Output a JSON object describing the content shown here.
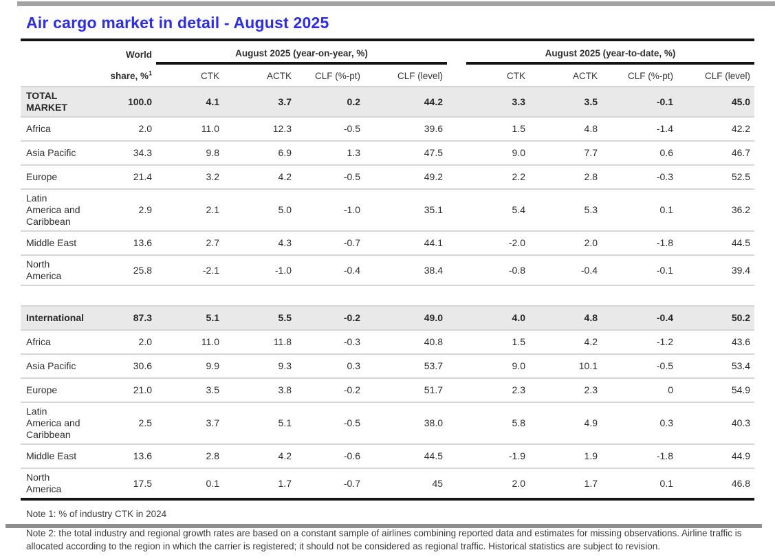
{
  "page": {
    "title": "Air cargo market in detail - August 2025",
    "accent_color": "#2b2bf2",
    "emphasis_row_bg": "#e9e9e9",
    "separator_color": "#d6d6d6",
    "rule_color": "#141414"
  },
  "table": {
    "header": {
      "world_line1": "World",
      "world_line2": "share, %",
      "world_sup": "1",
      "group_yoy": "August 2025 (year-on-year, %)",
      "group_ytd": "August 2025 (year-to-date, %)",
      "cols": [
        "CTK",
        "ACTK",
        "CLF (%-pt)",
        "CLF (level)",
        "CTK",
        "ACTK",
        "CLF (%-pt)",
        "CLF (level)"
      ]
    },
    "rows": [
      {
        "label": "TOTAL MARKET",
        "label_lines": [
          "TOTAL",
          "MARKET"
        ],
        "bold": true,
        "values": [
          "100.0",
          "4.1",
          "3.7",
          "0.2",
          "44.2",
          "3.3",
          "3.5",
          "-0.1",
          "45.0"
        ]
      },
      {
        "label": "Africa",
        "values": [
          "2.0",
          "11.0",
          "12.3",
          "-0.5",
          "39.6",
          "1.5",
          "4.8",
          "-1.4",
          "42.2"
        ]
      },
      {
        "label": "Asia Pacific",
        "values": [
          "34.3",
          "9.8",
          "6.9",
          "1.3",
          "47.5",
          "9.0",
          "7.7",
          "0.6",
          "46.7"
        ]
      },
      {
        "label": "Europe",
        "values": [
          "21.4",
          "3.2",
          "4.2",
          "-0.5",
          "49.2",
          "2.2",
          "2.8",
          "-0.3",
          "52.5"
        ]
      },
      {
        "label": "Latin America and Caribbean",
        "label_lines": [
          "Latin",
          "America and",
          "Caribbean"
        ],
        "values": [
          "2.9",
          "2.1",
          "5.0",
          "-1.0",
          "35.1",
          "5.4",
          "5.3",
          "0.1",
          "36.2"
        ]
      },
      {
        "label": "Middle East",
        "values": [
          "13.6",
          "2.7",
          "4.3",
          "-0.7",
          "44.1",
          "-2.0",
          "2.0",
          "-1.8",
          "44.5"
        ]
      },
      {
        "label": "North America",
        "label_lines": [
          "North",
          "America"
        ],
        "values": [
          "25.8",
          "-2.1",
          "-1.0",
          "-0.4",
          "38.4",
          "-0.8",
          "-0.4",
          "-0.1",
          "39.4"
        ]
      },
      {
        "spacer": true
      },
      {
        "label": "International",
        "bold": true,
        "values": [
          "87.3",
          "5.1",
          "5.5",
          "-0.2",
          "49.0",
          "4.0",
          "4.8",
          "-0.4",
          "50.2"
        ]
      },
      {
        "label": "Africa",
        "values": [
          "2.0",
          "11.0",
          "11.8",
          "-0.3",
          "40.8",
          "1.5",
          "4.2",
          "-1.2",
          "43.6"
        ]
      },
      {
        "label": "Asia Pacific",
        "values": [
          "30.6",
          "9.9",
          "9.3",
          "0.3",
          "53.7",
          "9.0",
          "10.1",
          "-0.5",
          "53.4"
        ]
      },
      {
        "label": "Europe",
        "values": [
          "21.0",
          "3.5",
          "3.8",
          "-0.2",
          "51.7",
          "2.3",
          "2.3",
          "0",
          "54.9"
        ]
      },
      {
        "label": "Latin America and Caribbean",
        "label_lines": [
          "Latin",
          "America and",
          "Caribbean"
        ],
        "values": [
          "2.5",
          "3.7",
          "5.1",
          "-0.5",
          "38.0",
          "5.8",
          "4.9",
          "0.3",
          "40.3"
        ]
      },
      {
        "label": "Middle East",
        "values": [
          "13.6",
          "2.8",
          "4.2",
          "-0.6",
          "44.5",
          "-1.9",
          "1.9",
          "-1.8",
          "44.9"
        ]
      },
      {
        "label": "North America",
        "label_lines": [
          "North",
          "America"
        ],
        "values": [
          "17.5",
          "0.1",
          "1.7",
          "-0.7",
          "45",
          "2.0",
          "1.7",
          "0.1",
          "46.8"
        ]
      }
    ]
  },
  "notes": {
    "note1": "Note 1: % of industry CTK in 2024",
    "note2": "Note 2: the total industry and regional growth rates are based on a constant sample of airlines combining reported data and estimates for missing observations. Airline traffic is allocated according to the region in which the carrier is registered; it should not be considered as regional traffic. Historical statistics are subject to revision."
  }
}
